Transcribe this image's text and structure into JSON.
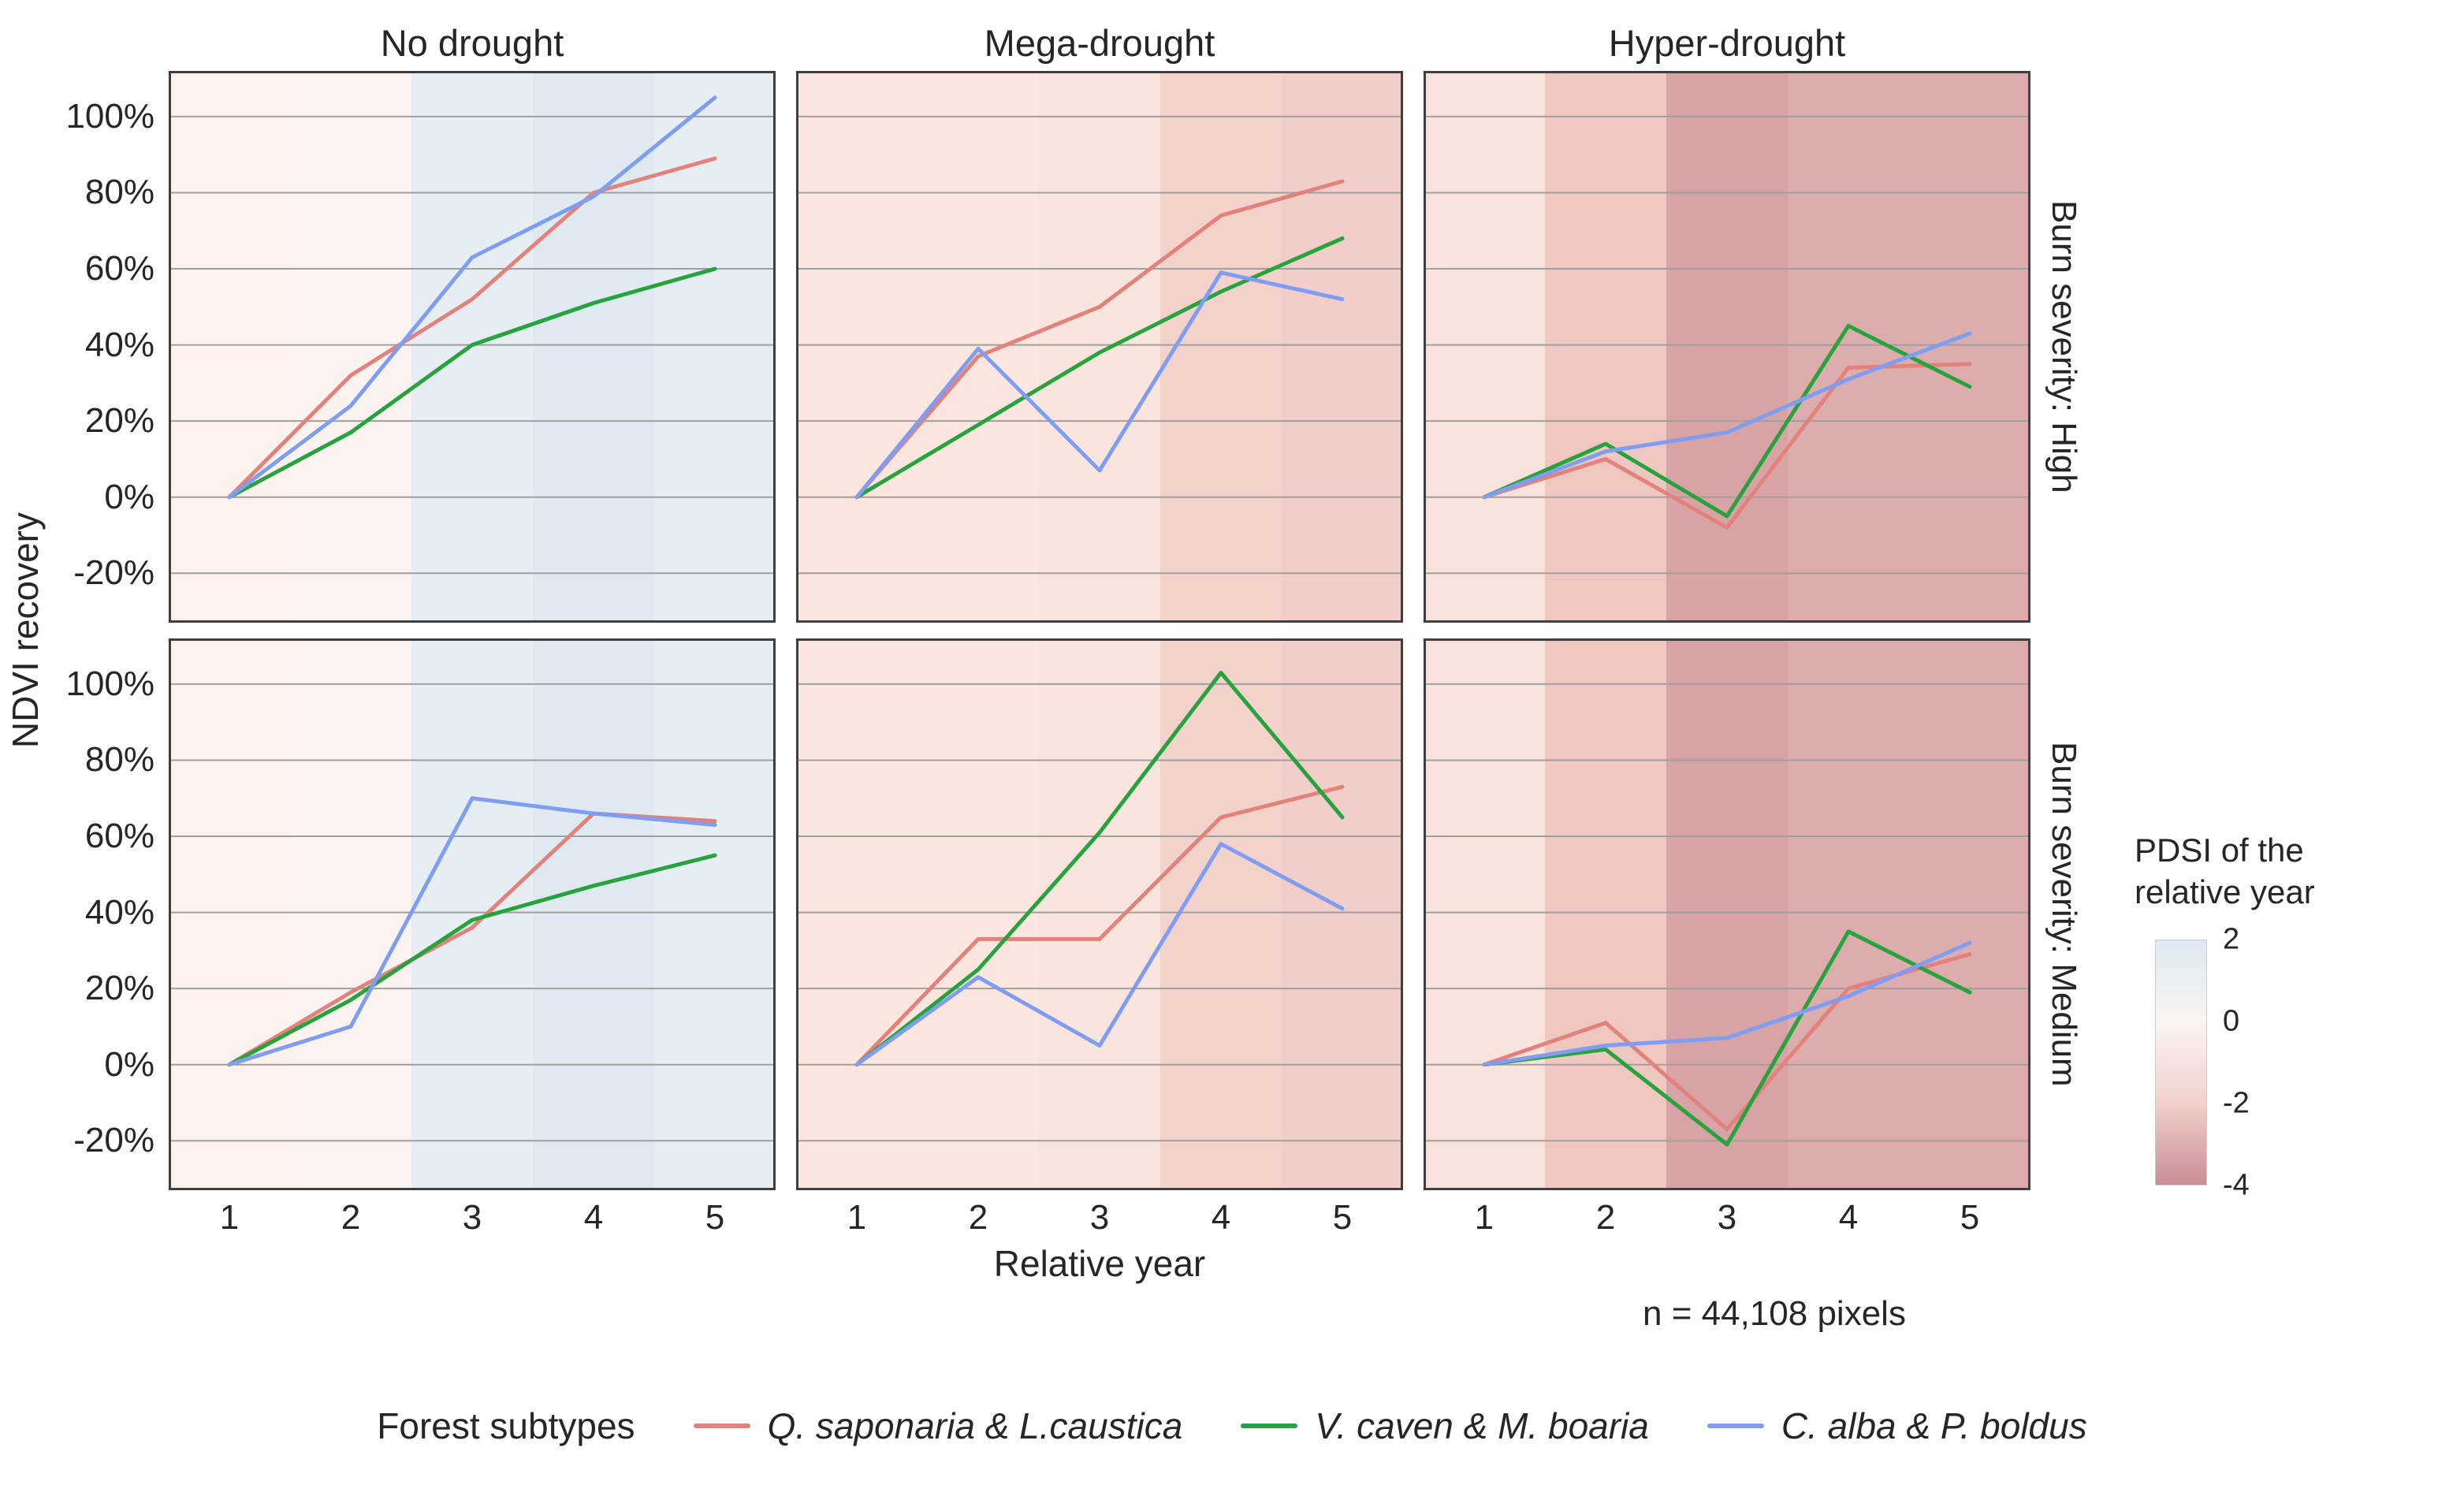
{
  "figure_type": "faceted-line-chart",
  "columns": [
    {
      "title": "No drought"
    },
    {
      "title": "Mega-drought"
    },
    {
      "title": "Hyper-drought"
    }
  ],
  "rows": [
    {
      "label": "Burn severity: High"
    },
    {
      "label": "Burn severity: Medium"
    }
  ],
  "axes": {
    "y_label": "NDVI recovery",
    "x_label": "Relative year",
    "y_ticks": [
      {
        "value": 100,
        "label": "100%"
      },
      {
        "value": 80,
        "label": "80%"
      },
      {
        "value": 60,
        "label": "60%"
      },
      {
        "value": 40,
        "label": "40%"
      },
      {
        "value": 20,
        "label": "20%"
      },
      {
        "value": 0,
        "label": "0%"
      },
      {
        "value": -20,
        "label": "-20%"
      }
    ],
    "x_ticks": [
      1,
      2,
      3,
      4,
      5
    ],
    "y_domain": [
      -33,
      112
    ],
    "x_domain": [
      0.5,
      5.5
    ],
    "grid": "horizontal-only"
  },
  "footnote": "n = 44,108 pixels",
  "pdsi_legend": {
    "title": "PDSI of the\nrelative year",
    "ticks": [
      "2",
      "0",
      "-2",
      "-4"
    ],
    "gradient": [
      "#dce8f0",
      "#faf5f1",
      "#f2d1cb",
      "#ca8e95"
    ]
  },
  "forest_legend": {
    "title": "Forest subtypes",
    "items": [
      {
        "label": "Q. saponaria & L.caustica",
        "color_key": "red"
      },
      {
        "label": "V. caven & M. boaria",
        "color_key": "green"
      },
      {
        "label": "C. alba & P. boldus",
        "color_key": "blue"
      }
    ]
  },
  "style": {
    "series": {
      "red": "#e2827b",
      "green": "#27a33d",
      "blue": "#7f9df3"
    },
    "gridline": "#9f9f9f",
    "panel_border": "#3f3f3f",
    "bands": {
      "no_drought": [
        "#fdf2ed",
        "#fbf3f0",
        "#e7eef3",
        "#dfe9f0",
        "#e6eef3"
      ],
      "mega": [
        "#fbe7e0",
        "#fbe7e0",
        "#f9e5de",
        "#f3d2cc",
        "#f1cec9"
      ],
      "hyper": [
        "#f8e3dc",
        "#eec7c0",
        "#d8a3a4",
        "#dcadac",
        "#dcadac"
      ]
    }
  },
  "chart_data": [
    {
      "type": "line",
      "row": 0,
      "col": 0,
      "facet_row": "Burn severity: High",
      "facet_col": "No drought",
      "band_key": "no_drought",
      "x": [
        1,
        2,
        3,
        4,
        5
      ],
      "series": [
        {
          "name": "Q. saponaria & L.caustica",
          "color_key": "red",
          "values": [
            0,
            32,
            52,
            80,
            89
          ]
        },
        {
          "name": "V. caven & M. boaria",
          "color_key": "green",
          "values": [
            0,
            17,
            40,
            51,
            60
          ]
        },
        {
          "name": "C. alba & P. boldus",
          "color_key": "blue",
          "values": [
            0,
            24,
            63,
            79,
            105
          ]
        }
      ]
    },
    {
      "type": "line",
      "row": 0,
      "col": 1,
      "facet_row": "Burn severity: High",
      "facet_col": "Mega-drought",
      "band_key": "mega",
      "x": [
        1,
        2,
        3,
        4,
        5
      ],
      "series": [
        {
          "name": "Q. saponaria & L.caustica",
          "color_key": "red",
          "values": [
            0,
            37,
            50,
            74,
            83
          ]
        },
        {
          "name": "V. caven & M. boaria",
          "color_key": "green",
          "values": [
            0,
            19,
            38,
            54,
            68
          ]
        },
        {
          "name": "C. alba & P. boldus",
          "color_key": "blue",
          "values": [
            0,
            39,
            7,
            59,
            52
          ]
        }
      ]
    },
    {
      "type": "line",
      "row": 0,
      "col": 2,
      "facet_row": "Burn severity: High",
      "facet_col": "Hyper-drought",
      "band_key": "hyper",
      "x": [
        1,
        2,
        3,
        4,
        5
      ],
      "series": [
        {
          "name": "Q. saponaria & L.caustica",
          "color_key": "red",
          "values": [
            0,
            10,
            -8,
            34,
            35
          ]
        },
        {
          "name": "V. caven & M. boaria",
          "color_key": "green",
          "values": [
            0,
            14,
            -5,
            45,
            29
          ]
        },
        {
          "name": "C. alba & P. boldus",
          "color_key": "blue",
          "values": [
            0,
            12,
            17,
            31,
            43
          ]
        }
      ]
    },
    {
      "type": "line",
      "row": 1,
      "col": 0,
      "facet_row": "Burn severity: Medium",
      "facet_col": "No drought",
      "band_key": "no_drought",
      "x": [
        1,
        2,
        3,
        4,
        5
      ],
      "series": [
        {
          "name": "Q. saponaria & L.caustica",
          "color_key": "red",
          "values": [
            0,
            19,
            36,
            66,
            64
          ]
        },
        {
          "name": "V. caven & M. boaria",
          "color_key": "green",
          "values": [
            0,
            17,
            38,
            47,
            55
          ]
        },
        {
          "name": "C. alba & P. boldus",
          "color_key": "blue",
          "values": [
            0,
            10,
            70,
            66,
            63
          ]
        }
      ]
    },
    {
      "type": "line",
      "row": 1,
      "col": 1,
      "facet_row": "Burn severity: Medium",
      "facet_col": "Mega-drought",
      "band_key": "mega",
      "x": [
        1,
        2,
        3,
        4,
        5
      ],
      "series": [
        {
          "name": "Q. saponaria & L.caustica",
          "color_key": "red",
          "values": [
            0,
            33,
            33,
            65,
            73
          ]
        },
        {
          "name": "V. caven & M. boaria",
          "color_key": "green",
          "values": [
            0,
            25,
            61,
            103,
            65
          ]
        },
        {
          "name": "C. alba & P. boldus",
          "color_key": "blue",
          "values": [
            0,
            23,
            5,
            58,
            41
          ]
        }
      ]
    },
    {
      "type": "line",
      "row": 1,
      "col": 2,
      "facet_row": "Burn severity: Medium",
      "facet_col": "Hyper-drought",
      "band_key": "hyper",
      "x": [
        1,
        2,
        3,
        4,
        5
      ],
      "series": [
        {
          "name": "Q. saponaria & L.caustica",
          "color_key": "red",
          "values": [
            0,
            11,
            -17,
            20,
            29
          ]
        },
        {
          "name": "V. caven & M. boaria",
          "color_key": "green",
          "values": [
            0,
            4,
            -21,
            35,
            19
          ]
        },
        {
          "name": "C. alba & P. boldus",
          "color_key": "blue",
          "values": [
            0,
            5,
            7,
            18,
            32
          ]
        }
      ]
    }
  ]
}
